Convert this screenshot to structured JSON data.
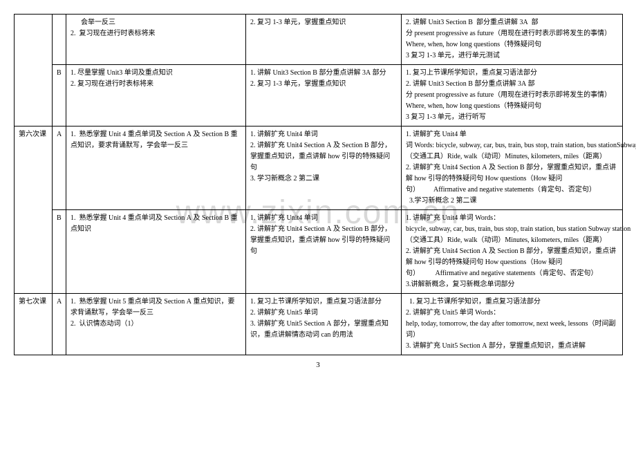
{
  "watermark": "www.zixin.com.cn",
  "page_number": "3",
  "table": {
    "rows": [
      {
        "col1": "",
        "col2": "",
        "col3": "      会举一反三\n2.  复习现在进行时表标将来",
        "col4": "2. 复习 1-3 单元，掌握重点知识",
        "col5": "2. 讲解 Unit3 Section B  部分重点讲解 3A  部分 present progressive as future（用现在进行时表示即将发生的事情）Where, when, how long questions（特殊疑问句\n3 复习 1-3 单元，进行单元测试"
      },
      {
        "col1": "",
        "col2": "B",
        "col3": "1. 尽量掌握 Unit3 单词及重点知识\n2. 复习现在进行时表标将来",
        "col4": "1. 讲解 Unit3 Section B 部分重点讲解 3A 部分\n2. 复习 1-3 单元，掌握重点知识",
        "col5": "1. 复习上节课所学知识，重点复习语法部分\n2. 讲解 Unit3 Section B 部分重点讲解 3A 部分 present progressive as future（用现在进行时表示即将发生的事情）Where, when, how long questions（特殊疑问句\n3 复习 1-3 单元，进行听写"
      },
      {
        "col1": "第六次课",
        "col2": "A",
        "col3": "1.  熟悉掌握 Unit 4 重点单词及 Section A 及 Section B 重点知识，要求背诵默写，学会举一反三",
        "col4": "1. 讲解扩充 Unit4 单词\n2. 讲解扩充 Unit4 Section A 及 Section B 部分，掌握重点知识，重点讲解 how 引导的特殊疑问句\n3. 学习新概念 2 第二课",
        "col5": "1. 讲解扩充 Unit4 单词 Words: bicycle, subway, car, bus, train, bus stop, train station, bus stationSubway station（交通工具）Ride, walk（动词）Minutes, kilometers, miles（距离）\n2. 讲解扩充 Unit4 Section A 及 Section B 部分，掌握重点知识，重点讲解 how 引导的特殊疑问句 How questions（How 疑问句）        Affirmative and negative statements（肯定句、否定句）\n  3.学习新概念 2 第二课"
      },
      {
        "col1": "",
        "col2": "B",
        "col3": "1.  熟悉掌握 Unit 4 重点单词及 Section A 及 Section B 重点知识",
        "col4": "1. 讲解扩充 Unit4 单词\n2. 讲解扩充 Unit4 Section A 及 Section B 部分，掌握重点知识，重点讲解 how 引导的特殊疑问句",
        "col5": "1. 讲解扩充 Unit4 单词 Words：bicycle, subway, car, bus, train, bus stop, train station, bus station Subway station（交通工具）Ride, walk（动词）Minutes, kilometers, miles（距离）\n2. 讲解扩充 Unit4 Section A 及 Section B 部分，掌握重点知识，重点讲解 how 引导的特殊疑问句 How questions（How 疑问句）         Affirmative and negative statements（肯定句、否定句）\n3.讲解新概念，复习新概念单词部分"
      },
      {
        "col1": "第七次课",
        "col2": "A",
        "col3": "1.  熟悉掌握 Unit 5 重点单词及 Section A 重点知识，要求背诵默写，学会举一反三\n2.  认识情态动词（1）",
        "col4": "1. 复习上节课所学知识，重点复习语法部分\n2. 讲解扩充 Unit5 单词\n3. 讲解扩充 Unit5 Section A 部分，掌握重点知识，重点讲解情态动词 can 的用法",
        "col5": "  1. 复习上节课所学知识，重点复习语法部分\n2. 讲解扩充 Unit5 单词 Words：help, today, tomorrow, the day after tomorrow, next week, lessons（时间副词）\n3. 讲解扩充 Unit5 Section A 部分，掌握重点知识，重点讲解"
      }
    ]
  }
}
